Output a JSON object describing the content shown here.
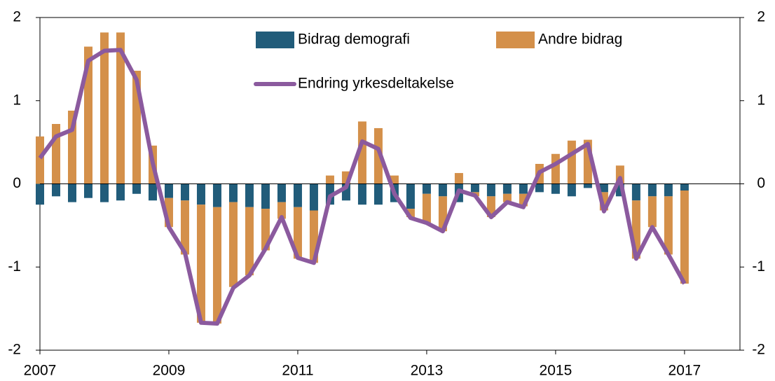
{
  "chart_data": {
    "type": "bar_line",
    "x": [
      2007,
      2007.25,
      2007.5,
      2007.75,
      2008,
      2008.25,
      2008.5,
      2008.75,
      2009,
      2009.25,
      2009.5,
      2009.75,
      2010,
      2010.25,
      2010.5,
      2010.75,
      2011,
      2011.25,
      2011.5,
      2011.75,
      2012,
      2012.25,
      2012.5,
      2012.75,
      2013,
      2013.25,
      2013.5,
      2013.75,
      2014,
      2014.25,
      2014.5,
      2014.75,
      2015,
      2015.25,
      2015.5,
      2015.75,
      2016,
      2016.25,
      2016.5,
      2016.75,
      2017
    ],
    "series": [
      {
        "name": "Bidrag demografi",
        "color": "#215c7a",
        "kind": "bar",
        "values": [
          -0.25,
          -0.15,
          -0.22,
          -0.17,
          -0.22,
          -0.2,
          -0.12,
          -0.2,
          -0.17,
          -0.2,
          -0.25,
          -0.28,
          -0.22,
          -0.28,
          -0.3,
          -0.22,
          -0.28,
          -0.32,
          -0.25,
          -0.2,
          -0.25,
          -0.25,
          -0.22,
          -0.3,
          -0.12,
          -0.15,
          -0.22,
          -0.1,
          -0.15,
          -0.12,
          -0.12,
          -0.1,
          -0.12,
          -0.15,
          -0.05,
          -0.1,
          -0.15,
          -0.2,
          -0.15,
          -0.15,
          -0.08
        ]
      },
      {
        "name": "Andre bidrag",
        "color": "#d4904a",
        "kind": "bar",
        "values": [
          0.57,
          0.72,
          0.88,
          1.65,
          1.82,
          1.82,
          1.36,
          0.46,
          -0.35,
          -0.65,
          -1.42,
          -1.4,
          -1.02,
          -0.82,
          -0.5,
          -0.2,
          -0.62,
          -0.63,
          0.1,
          0.15,
          0.75,
          0.67,
          0.1,
          -0.1,
          -0.35,
          -0.42,
          0.13,
          -0.05,
          -0.25,
          -0.1,
          -0.15,
          0.24,
          0.36,
          0.52,
          0.53,
          -0.22,
          0.22,
          -0.7,
          -0.37,
          -0.7,
          -1.12
        ]
      },
      {
        "name": "Endring yrkesdeltakelse",
        "color": "#8b5a9e",
        "kind": "line",
        "values": [
          0.31,
          0.57,
          0.65,
          1.48,
          1.6,
          1.61,
          1.25,
          0.25,
          -0.52,
          -0.83,
          -1.67,
          -1.68,
          -1.25,
          -1.1,
          -0.78,
          -0.4,
          -0.89,
          -0.95,
          -0.15,
          -0.04,
          0.51,
          0.42,
          -0.12,
          -0.41,
          -0.47,
          -0.57,
          -0.08,
          -0.14,
          -0.4,
          -0.22,
          -0.28,
          0.14,
          0.24,
          0.36,
          0.48,
          -0.33,
          0.07,
          -0.9,
          -0.52,
          -0.85,
          -1.2
        ]
      }
    ],
    "xlim": [
      2007,
      2017.86
    ],
    "xticks": [
      2007,
      2009,
      2011,
      2013,
      2015,
      2017
    ],
    "ylim": [
      -2,
      2
    ],
    "yticks": [
      -2,
      -1,
      0,
      1,
      2
    ],
    "y2lim": [
      -2,
      2
    ],
    "y2ticks": [
      -2,
      -1,
      0,
      1,
      2
    ]
  }
}
